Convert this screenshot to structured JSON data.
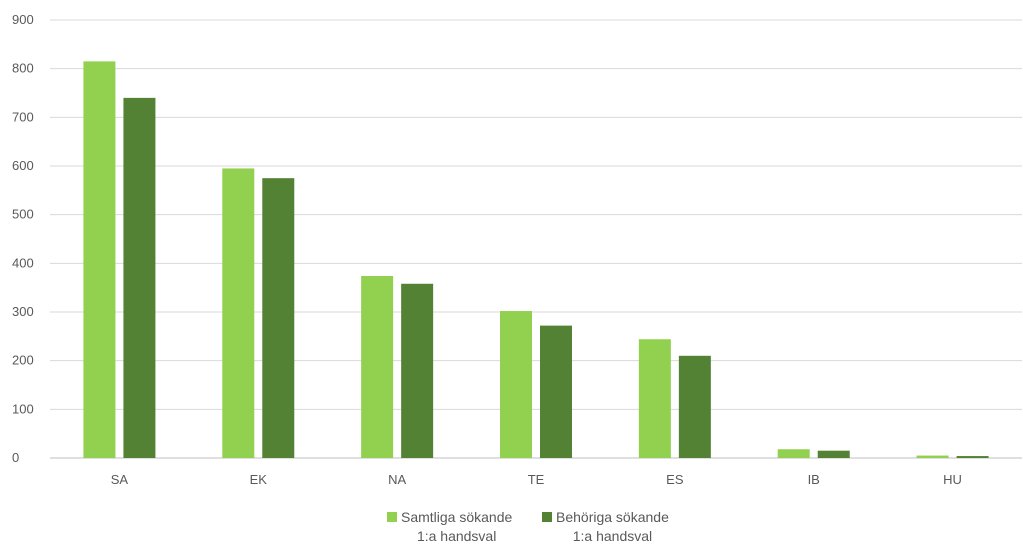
{
  "chart_data": {
    "type": "bar",
    "categories": [
      "SA",
      "EK",
      "NA",
      "TE",
      "ES",
      "IB",
      "HU"
    ],
    "series": [
      {
        "name": "Samtliga sökande 1:a handsval",
        "name_lines": [
          "Samtliga sökande",
          "1:a handsval"
        ],
        "color": "#92d050",
        "values": [
          815,
          595,
          374,
          302,
          244,
          18,
          5
        ]
      },
      {
        "name": "Behöriga sökande 1:a handsval",
        "name_lines": [
          "Behöriga sökande",
          "1:a handsval"
        ],
        "color": "#548235",
        "values": [
          740,
          575,
          358,
          272,
          210,
          15,
          4
        ]
      }
    ],
    "ylim": [
      0,
      900
    ],
    "yticks": [
      0,
      100,
      200,
      300,
      400,
      500,
      600,
      700,
      800,
      900
    ],
    "grid": true,
    "legend_position": "bottom-center",
    "gridline_color": "#d9d9d9",
    "axis_color": "#bfbfbf"
  }
}
